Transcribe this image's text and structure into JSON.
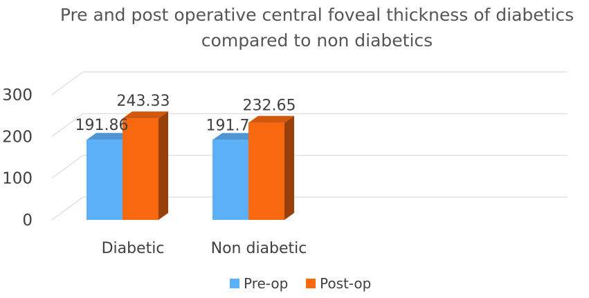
{
  "chart_data": {
    "type": "bar",
    "title": "Pre and post operative central foveal thickness of diabetics compared to non diabetics",
    "title_lines": [
      "Pre and post operative central foveal thickness of diabetics",
      "compared to non diabetics"
    ],
    "categories": [
      "Diabetic",
      "Non diabetic"
    ],
    "series": [
      {
        "name": "Pre-op",
        "values": [
          191.86,
          191.7
        ],
        "labels": [
          "191.86",
          "191.7"
        ],
        "color": "#5BB0F8"
      },
      {
        "name": "Post-op",
        "values": [
          243.33,
          232.65
        ],
        "labels": [
          "243.33",
          "232.65"
        ],
        "color": "#F7680F"
      }
    ],
    "ylim": [
      0,
      300
    ],
    "yticks": [
      0,
      100,
      200,
      300
    ],
    "grid": true,
    "legend_position": "bottom",
    "style": "3d-clustered-column",
    "colors": {
      "text": "#404040",
      "title": "#555555",
      "grid": "#dcdcdc"
    }
  }
}
